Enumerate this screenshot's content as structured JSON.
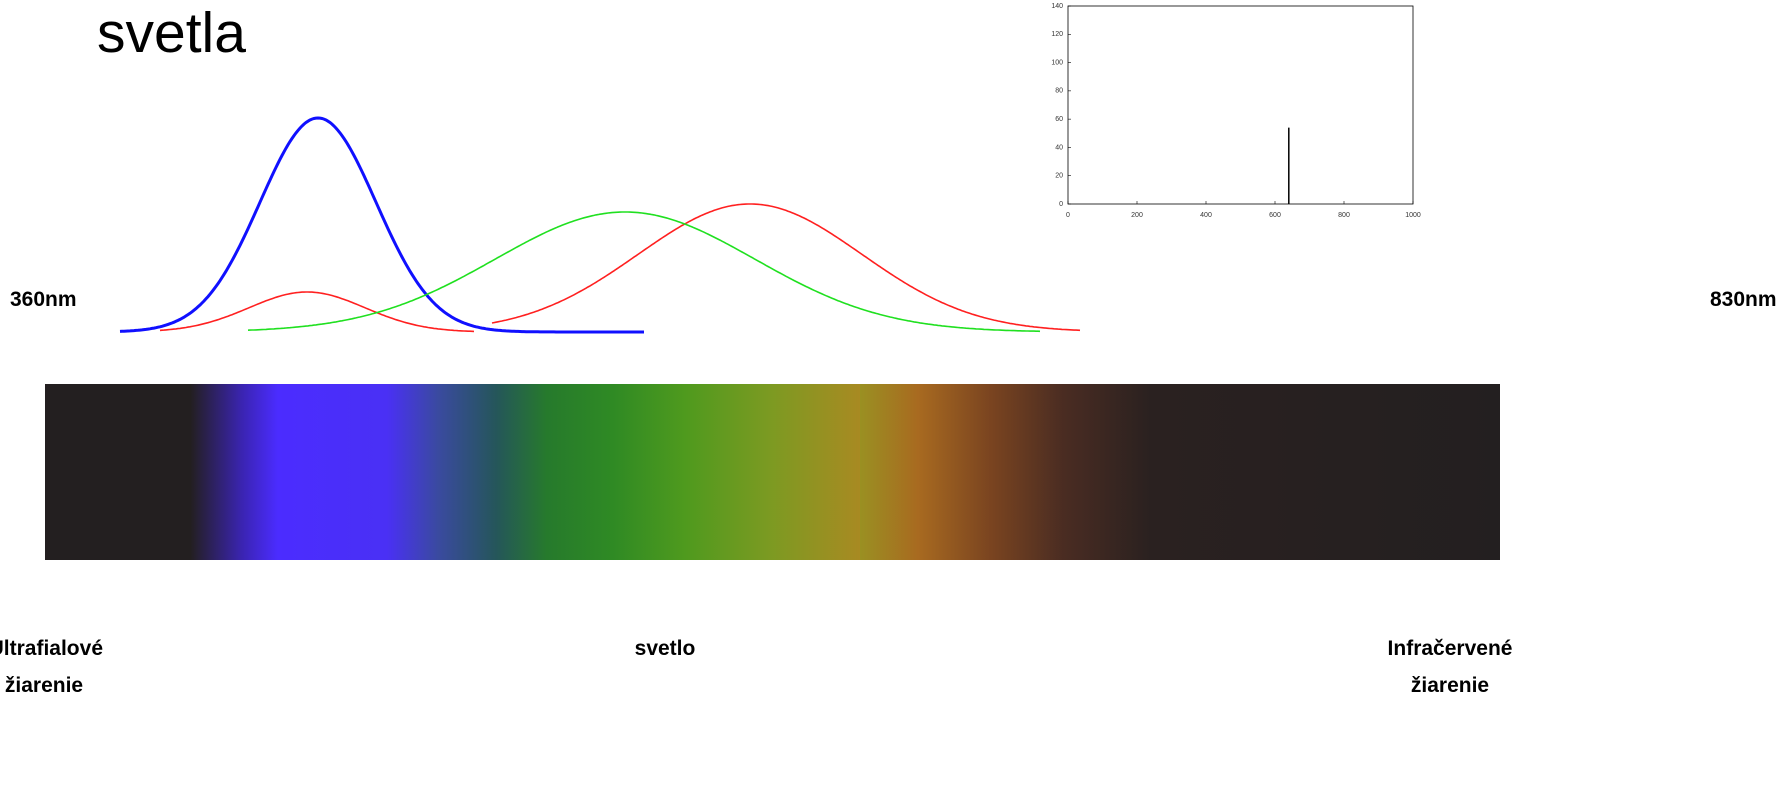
{
  "title": "svetla",
  "left_wavelength": "360nm",
  "right_wavelength": "830nm",
  "bottom_labels": {
    "left": [
      "Ultrafialové",
      "žiarenie"
    ],
    "center": "svetlo",
    "right": [
      "Infračervené",
      "žiarenie"
    ]
  },
  "chart_data": {
    "type": "stem",
    "x": [
      640
    ],
    "values": [
      54
    ],
    "color": "#000000",
    "xlim": [
      0,
      1000
    ],
    "xticks": [
      0,
      200,
      400,
      600,
      800,
      1000
    ],
    "ylim": [
      0,
      140
    ],
    "yticks": [
      0,
      20,
      40,
      60,
      80,
      100,
      120,
      140
    ]
  }
}
